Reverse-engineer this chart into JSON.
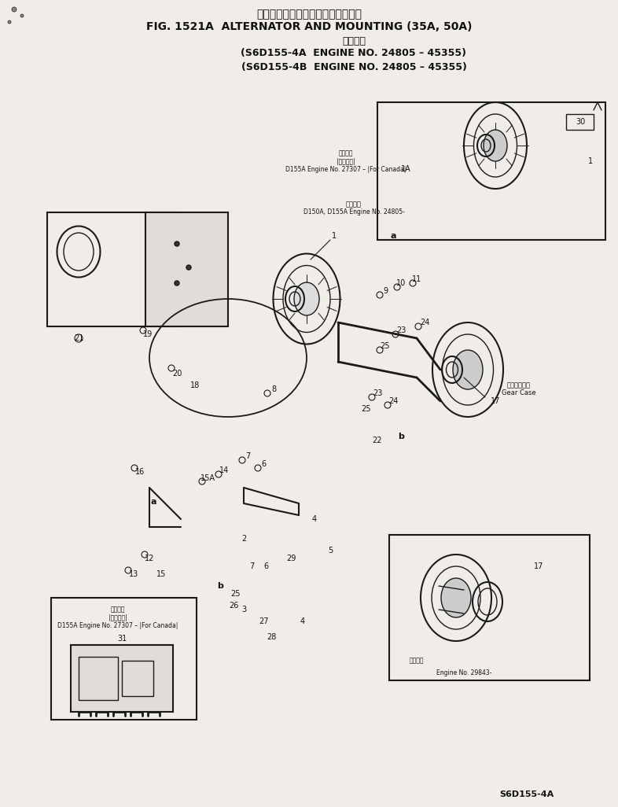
{
  "title_line1": "オルタネータおよびマウンティング",
  "title_line2": "FIG. 1521A  ALTERNATOR AND MOUNTING (35A, 50A)",
  "title_line3": "通用号機",
  "title_line4": "(S6D155-4A  ENGINE NO. 24805 – 45355)",
  "title_line5": "(S6D155-4B  ENGINE NO. 24805 – 45355)",
  "footer": "S6D155-4A",
  "bg_color": "#f0ede8",
  "line_color": "#1a1a1a",
  "text_color": "#111111"
}
